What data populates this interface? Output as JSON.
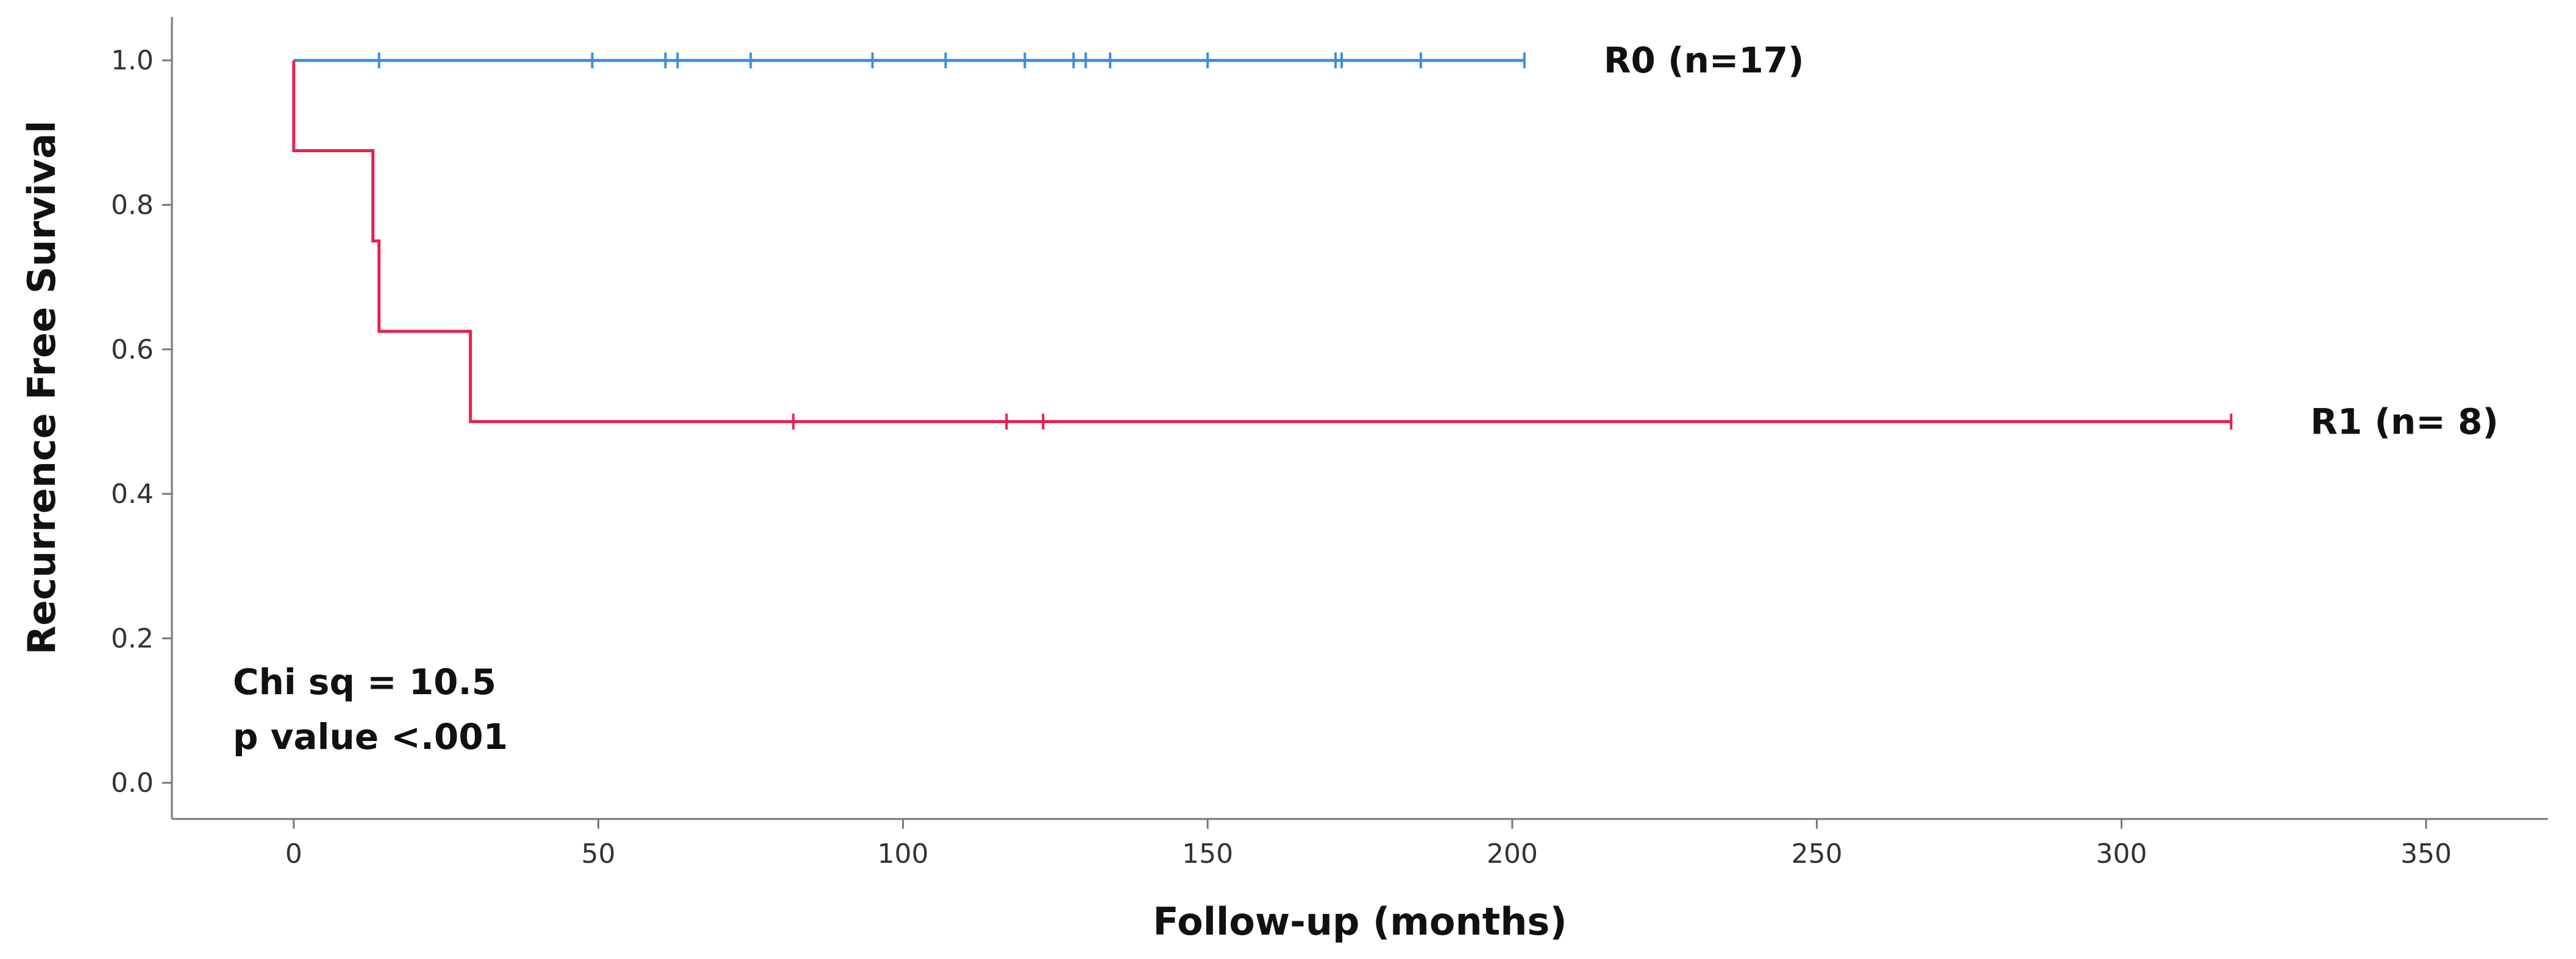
{
  "chart_data": {
    "type": "line",
    "title": "",
    "xlabel": "Follow-up (months)",
    "ylabel": "Recurrence Free Survival",
    "xlim": [
      -20,
      370
    ],
    "ylim": [
      -0.05,
      1.06
    ],
    "xticks": [
      0,
      50,
      100,
      150,
      200,
      250,
      300,
      350
    ],
    "yticks": [
      0.0,
      0.2,
      0.4,
      0.6,
      0.8,
      1.0
    ],
    "xtick_labels": [
      "0",
      "50",
      "100",
      "150",
      "200",
      "250",
      "300",
      "350"
    ],
    "ytick_labels": [
      "0.0",
      "0.2",
      "0.4",
      "0.6",
      "0.8",
      "1.0"
    ],
    "grid": false,
    "series": [
      {
        "name": "R0 (n=17)",
        "color": "#3d8fd9",
        "steps": [
          [
            0,
            1.0
          ],
          [
            202,
            1.0
          ]
        ],
        "censored": [
          14,
          49,
          61,
          63,
          75,
          95,
          107,
          120,
          128,
          130,
          134,
          150,
          171,
          172,
          185,
          202
        ],
        "censored_y": 1.0
      },
      {
        "name": "R1 (n= 8)",
        "color": "#e8204f",
        "steps": [
          [
            0,
            1.0
          ],
          [
            0,
            0.875
          ],
          [
            13,
            0.875
          ],
          [
            13,
            0.75
          ],
          [
            14,
            0.75
          ],
          [
            14,
            0.625
          ],
          [
            29,
            0.625
          ],
          [
            29,
            0.5
          ],
          [
            318,
            0.5
          ]
        ],
        "censored": [
          82,
          117,
          123,
          318
        ],
        "censored_y": 0.5
      }
    ],
    "annotations": [
      "Chi sq = 10.5",
      "p value <.001"
    ]
  }
}
